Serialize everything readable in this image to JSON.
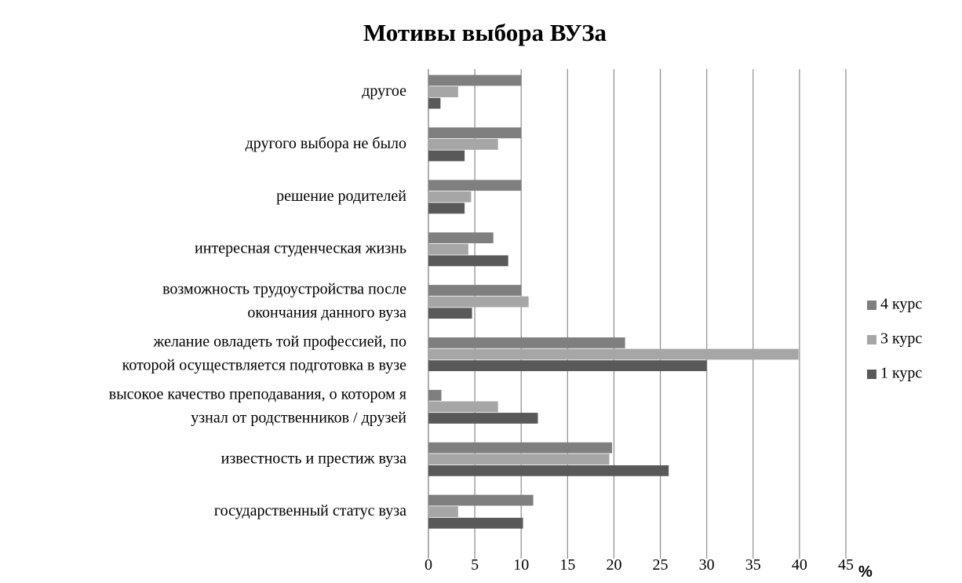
{
  "chart_data": {
    "type": "barh",
    "title": "Мотивы выбора ВУЗа",
    "x_label": "%",
    "categories": [
      [
        "государственный статус вуза"
      ],
      [
        "известность и престиж вуза"
      ],
      [
        "высокое качество преподавания, о котором я",
        "узнал от родственников / друзей"
      ],
      [
        "желание овладеть той профессией, по",
        "которой осуществляется подготовка в вузе"
      ],
      [
        "возможность трудоустройства после",
        "окончания данного вуза"
      ],
      [
        "интересная студенческая жизнь"
      ],
      [
        "решение родителей"
      ],
      [
        "другого выбора не было"
      ],
      [
        "другое"
      ]
    ],
    "series": [
      {
        "name": "4 курс",
        "color": "#7f7f7f",
        "values": [
          11.3,
          19.8,
          1.4,
          21.2,
          10.0,
          7.0,
          10.0,
          10.0,
          10.0
        ]
      },
      {
        "name": "3 курс",
        "color": "#a6a6a6",
        "values": [
          3.2,
          19.5,
          7.5,
          39.9,
          10.8,
          4.3,
          4.6,
          7.5,
          3.2
        ]
      },
      {
        "name": "1 курс",
        "color": "#595959",
        "values": [
          10.2,
          25.9,
          11.8,
          30.0,
          4.7,
          8.6,
          3.9,
          3.9,
          1.3
        ]
      }
    ],
    "xlim": [
      0,
      45
    ],
    "xticks": [
      0,
      5,
      10,
      15,
      20,
      25,
      30,
      35,
      40,
      45
    ],
    "grid": true,
    "legend": "right"
  }
}
